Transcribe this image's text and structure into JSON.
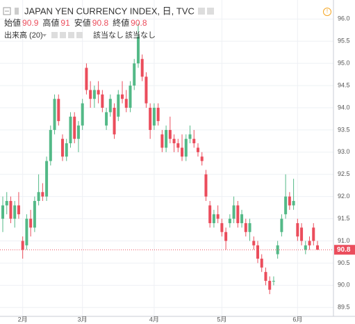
{
  "chart_data": {
    "type": "candlestick",
    "title": "JAPAN YEN CURRENCY INDEX, 日, TVC",
    "ohlc_labels": [
      "始値",
      "高値",
      "安値",
      "終値"
    ],
    "volume_label": "出来高 (20)",
    "na_labels": [
      "該当なし",
      "該当なし"
    ],
    "up_color": "#53b987",
    "down_color": "#eb4d5c",
    "open": [
      91.5,
      91.8,
      91.9,
      91.5,
      91.8,
      91.0,
      90.9,
      91.5,
      91.3,
      91.9,
      92.1,
      92.0,
      92.8,
      93.5,
      94.2,
      93.3,
      92.9,
      93.2,
      93.8,
      93.3,
      93.6,
      94.9,
      94.4,
      94.2,
      94.4,
      94.3,
      93.6,
      93.9,
      94.0,
      93.8,
      94.3,
      94.2,
      94.0,
      94.5,
      95.0,
      95.1,
      94.7,
      94.0,
      93.6,
      94.0,
      93.4,
      93.1,
      93.5,
      93.3,
      93.2,
      93.1,
      92.9,
      93.3,
      93.3,
      93.1,
      92.9,
      92.5,
      91.8,
      91.4,
      91.6,
      91.4,
      91.2,
      91.4,
      91.5,
      91.8,
      91.4,
      91.4,
      91.2,
      91.0,
      90.9,
      90.6,
      90.3,
      90.1,
      90.1,
      90.7,
      91.2,
      91.6,
      92.0,
      91.8,
      91.4,
      91.3,
      90.8,
      91.0,
      91.3,
      90.9
    ],
    "high": [
      92.0,
      92.1,
      92.0,
      91.9,
      92.1,
      91.1,
      91.6,
      91.7,
      92.0,
      92.5,
      92.3,
      92.9,
      93.6,
      94.3,
      94.3,
      93.4,
      93.3,
      93.9,
      93.9,
      93.7,
      94.2,
      95.0,
      94.6,
      94.5,
      94.6,
      94.4,
      94.0,
      94.3,
      94.1,
      94.4,
      94.6,
      94.4,
      94.6,
      95.1,
      95.9,
      95.2,
      94.8,
      94.1,
      94.1,
      94.1,
      93.5,
      93.6,
      93.8,
      93.4,
      93.3,
      93.4,
      93.4,
      93.6,
      93.5,
      93.2,
      93.0,
      92.6,
      91.9,
      91.7,
      91.8,
      91.5,
      91.3,
      91.6,
      92.0,
      91.9,
      91.7,
      91.5,
      91.5,
      91.1,
      91.0,
      90.7,
      90.4,
      90.2,
      90.2,
      91.0,
      91.6,
      92.5,
      92.1,
      92.4,
      91.5,
      91.4,
      91.0,
      91.1,
      91.4,
      91.0
    ],
    "low": [
      91.2,
      91.6,
      91.4,
      91.3,
      91.5,
      90.6,
      90.8,
      91.1,
      91.2,
      91.8,
      91.9,
      91.9,
      92.7,
      93.4,
      93.6,
      92.8,
      92.8,
      93.1,
      93.2,
      93.0,
      93.5,
      94.3,
      94.0,
      94.0,
      94.1,
      93.9,
      93.5,
      93.8,
      93.3,
      93.7,
      94.1,
      93.9,
      93.9,
      94.4,
      94.9,
      94.6,
      94.0,
      93.3,
      93.5,
      93.6,
      93.0,
      93.0,
      93.2,
      93.0,
      93.0,
      92.8,
      92.8,
      93.2,
      93.1,
      92.9,
      92.7,
      91.9,
      91.3,
      91.3,
      91.4,
      91.1,
      90.8,
      91.3,
      91.4,
      91.3,
      91.3,
      91.1,
      91.0,
      90.8,
      90.5,
      90.3,
      90.0,
      89.8,
      90.0,
      90.6,
      91.1,
      91.5,
      91.7,
      91.7,
      91.0,
      90.9,
      90.7,
      90.8,
      90.9,
      90.8
    ],
    "close": [
      91.8,
      91.9,
      91.5,
      91.8,
      91.6,
      90.8,
      91.5,
      91.3,
      91.9,
      92.1,
      92.0,
      92.8,
      93.5,
      94.2,
      93.7,
      92.9,
      93.2,
      93.8,
      93.3,
      93.6,
      94.1,
      94.4,
      94.2,
      94.4,
      94.3,
      94.0,
      93.9,
      94.2,
      93.4,
      94.3,
      94.2,
      94.0,
      94.5,
      95.0,
      95.6,
      94.7,
      94.1,
      93.5,
      94.0,
      93.7,
      93.1,
      93.5,
      93.3,
      93.2,
      93.1,
      92.9,
      93.3,
      93.4,
      93.2,
      93.0,
      92.8,
      92.0,
      91.4,
      91.6,
      91.5,
      91.2,
      91.0,
      91.5,
      91.8,
      91.4,
      91.6,
      91.2,
      91.4,
      90.9,
      90.6,
      90.4,
      90.1,
      89.9,
      90.1,
      90.9,
      91.5,
      92.0,
      91.8,
      91.9,
      91.1,
      91.0,
      90.9,
      90.9,
      91.0,
      90.8
    ],
    "ylim": [
      89.3,
      96.35
    ],
    "yticks": [
      {
        "value": 89.5,
        "label": "89.5"
      },
      {
        "value": 90,
        "label": "90.0"
      },
      90.5,
      {
        "value": 91,
        "label": "91.0"
      },
      91.5,
      {
        "value": 92,
        "label": "92.0"
      },
      92.5,
      {
        "value": 93,
        "label": "93.0"
      },
      93.5,
      {
        "value": 94,
        "label": "94.0"
      },
      94.5,
      {
        "value": 95,
        "label": "95.0"
      },
      95.5,
      {
        "value": 96,
        "label": "96.0"
      }
    ],
    "xticks": [
      {
        "value": 5,
        "label": "2月"
      },
      {
        "value": 20,
        "label": "3月"
      },
      {
        "value": 38,
        "label": "4月"
      },
      {
        "value": 55,
        "label": "5月"
      },
      {
        "value": 74,
        "label": "6月"
      }
    ],
    "grid": true
  }
}
